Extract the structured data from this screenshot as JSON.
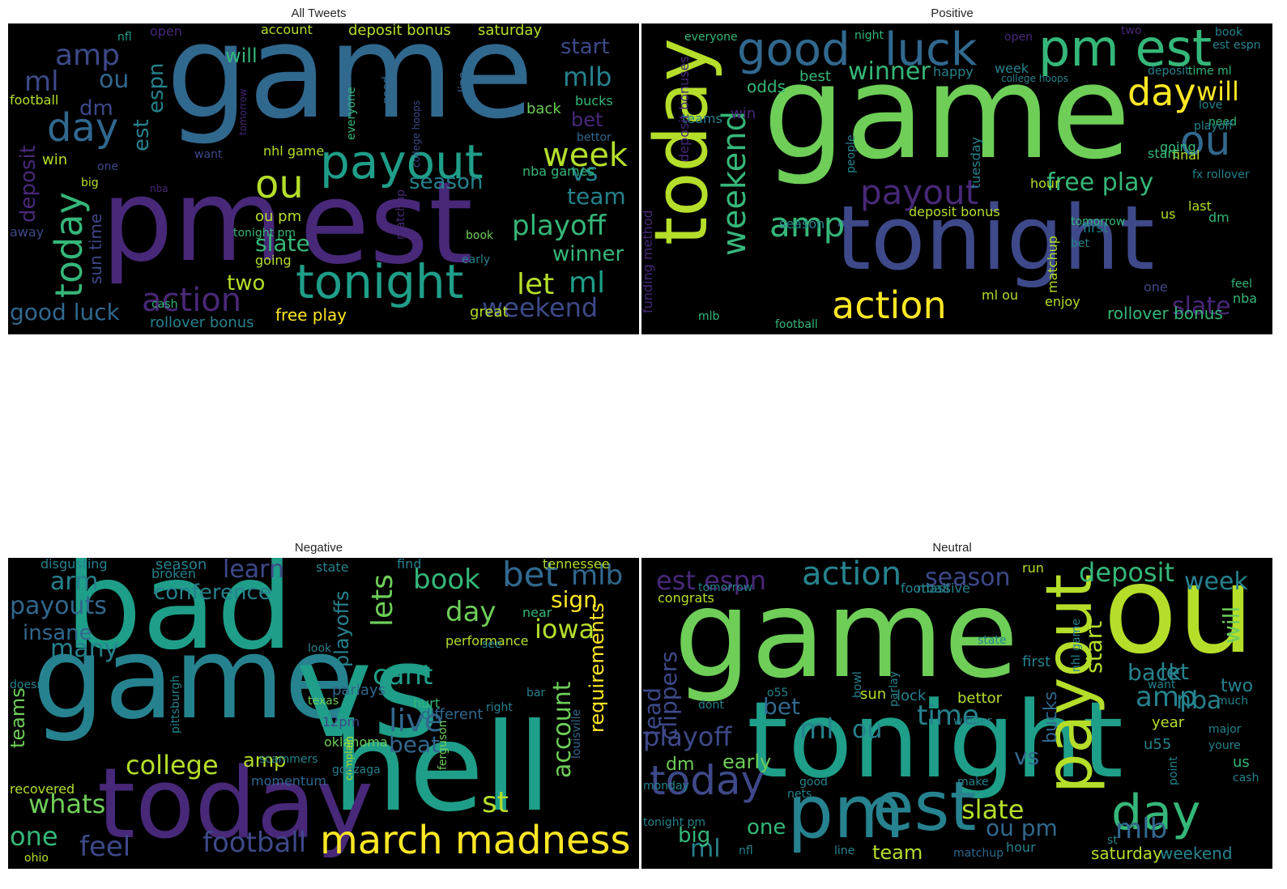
{
  "palette": [
    "#440154",
    "#482878",
    "#3e4989",
    "#31688e",
    "#26828e",
    "#1f9e89",
    "#35b779",
    "#6ece58",
    "#b5de2b",
    "#fde725"
  ],
  "panels": [
    {
      "title": "All Tweets",
      "words": [
        {
          "t": "game",
          "c": "#31688e"
        },
        {
          "t": "pm",
          "c": "#482878"
        },
        {
          "t": "est",
          "c": "#482878"
        },
        {
          "t": "payout",
          "c": "#1f9e89"
        },
        {
          "t": "tonight",
          "c": "#1f9e89"
        },
        {
          "t": "today",
          "c": "#35b779"
        },
        {
          "t": "day",
          "c": "#31688e"
        },
        {
          "t": "amp",
          "c": "#3e4989"
        },
        {
          "t": "ml",
          "c": "#3e4989"
        },
        {
          "t": "ou",
          "c": "#b5de2b"
        },
        {
          "t": "ou",
          "c": "#31688e"
        },
        {
          "t": "action",
          "c": "#482878"
        },
        {
          "t": "week",
          "c": "#b5de2b"
        },
        {
          "t": "playoff",
          "c": "#35b779"
        },
        {
          "t": "let",
          "c": "#b5de2b"
        },
        {
          "t": "ml",
          "c": "#1f9e89"
        },
        {
          "t": "weekend",
          "c": "#3e4989"
        },
        {
          "t": "winner",
          "c": "#35b779"
        },
        {
          "t": "mlb",
          "c": "#26828e"
        },
        {
          "t": "vs",
          "c": "#26828e"
        },
        {
          "t": "team",
          "c": "#26828e"
        },
        {
          "t": "season",
          "c": "#26828e"
        },
        {
          "t": "slate",
          "c": "#35b779"
        },
        {
          "t": "two",
          "c": "#b5de2b"
        },
        {
          "t": "good luck",
          "c": "#31688e"
        },
        {
          "t": "deposit",
          "c": "#482878"
        },
        {
          "t": "espn",
          "c": "#26828e"
        },
        {
          "t": "est",
          "c": "#26828e"
        },
        {
          "t": "dm",
          "c": "#3e4989"
        },
        {
          "t": "will",
          "c": "#35b779"
        },
        {
          "t": "start",
          "c": "#3e4989"
        },
        {
          "t": "bet",
          "c": "#482878"
        },
        {
          "t": "bucks",
          "c": "#35b779"
        },
        {
          "t": "back",
          "c": "#6ece58"
        },
        {
          "t": "free play",
          "c": "#fde725"
        },
        {
          "t": "rollover bonus",
          "c": "#26828e"
        },
        {
          "t": "ou pm",
          "c": "#b5de2b"
        },
        {
          "t": "sun time",
          "c": "#3e4989"
        },
        {
          "t": "deposit bonus",
          "c": "#b5de2b"
        },
        {
          "t": "account",
          "c": "#b5de2b"
        },
        {
          "t": "saturday",
          "c": "#b5de2b"
        },
        {
          "t": "football",
          "c": "#b5de2b"
        },
        {
          "t": "win",
          "c": "#b5de2b"
        },
        {
          "t": "big",
          "c": "#b5de2b"
        },
        {
          "t": "nhl game",
          "c": "#b5de2b"
        },
        {
          "t": "great",
          "c": "#b5de2b"
        },
        {
          "t": "early",
          "c": "#26828e"
        },
        {
          "t": "book",
          "c": "#6ece58"
        },
        {
          "t": "cash",
          "c": "#35b779"
        },
        {
          "t": "going",
          "c": "#b5de2b"
        },
        {
          "t": "matchup",
          "c": "#482878"
        },
        {
          "t": "nba games",
          "c": "#35b779"
        },
        {
          "t": "one",
          "c": "#3e4989"
        },
        {
          "t": "away",
          "c": "#3e4989"
        },
        {
          "t": "nfl",
          "c": "#1f9e89"
        },
        {
          "t": "open",
          "c": "#482878"
        },
        {
          "t": "good",
          "c": "#31688e"
        },
        {
          "t": "everyone",
          "c": "#35b779"
        },
        {
          "t": "line",
          "c": "#31688e"
        },
        {
          "t": "bettor",
          "c": "#31688e"
        },
        {
          "t": "want",
          "c": "#3e4989"
        },
        {
          "t": "nba",
          "c": "#482878"
        },
        {
          "t": "college hoops",
          "c": "#3e4989"
        },
        {
          "t": "tomorrow",
          "c": "#482878"
        },
        {
          "t": "tonight pm",
          "c": "#35b779"
        }
      ]
    },
    {
      "title": "Positive",
      "words": [
        {
          "t": "game",
          "c": "#6ece58"
        },
        {
          "t": "tonight",
          "c": "#3e4989"
        },
        {
          "t": "today",
          "c": "#b5de2b"
        },
        {
          "t": "pm est",
          "c": "#35b779"
        },
        {
          "t": "good",
          "c": "#31688e"
        },
        {
          "t": "luck",
          "c": "#31688e"
        },
        {
          "t": "weekend",
          "c": "#35b779"
        },
        {
          "t": "action",
          "c": "#fde725"
        },
        {
          "t": "payout",
          "c": "#482878"
        },
        {
          "t": "amp",
          "c": "#35b779"
        },
        {
          "t": "day",
          "c": "#fde725"
        },
        {
          "t": "ou",
          "c": "#31688e"
        },
        {
          "t": "winner",
          "c": "#35b779"
        },
        {
          "t": "free play",
          "c": "#35b779"
        },
        {
          "t": "slate",
          "c": "#482878"
        },
        {
          "t": "rollover bonus",
          "c": "#35b779"
        },
        {
          "t": "will",
          "c": "#fde725"
        },
        {
          "t": "odds",
          "c": "#35b779"
        },
        {
          "t": "best",
          "c": "#35b779"
        },
        {
          "t": "win",
          "c": "#482878"
        },
        {
          "t": "teams",
          "c": "#26828e"
        },
        {
          "t": "deposit bonus",
          "c": "#b5de2b"
        },
        {
          "t": "hour",
          "c": "#b5de2b"
        },
        {
          "t": "final",
          "c": "#b5de2b"
        },
        {
          "t": "start",
          "c": "#35b779"
        },
        {
          "t": "going",
          "c": "#35b779"
        },
        {
          "t": "tuesday",
          "c": "#26828e"
        },
        {
          "t": "matchup",
          "c": "#b5de2b"
        },
        {
          "t": "week",
          "c": "#26828e"
        },
        {
          "t": "happy",
          "c": "#26828e"
        },
        {
          "t": "deposit",
          "c": "#26828e"
        },
        {
          "t": "time ml",
          "c": "#35b779"
        },
        {
          "t": "season",
          "c": "#26828e"
        },
        {
          "t": "football",
          "c": "#35b779"
        },
        {
          "t": "enjoy",
          "c": "#b5de2b"
        },
        {
          "t": "ml ou",
          "c": "#b5de2b"
        },
        {
          "t": "nba",
          "c": "#35b779"
        },
        {
          "t": "last",
          "c": "#b5de2b"
        },
        {
          "t": "dm",
          "c": "#35b779"
        },
        {
          "t": "us",
          "c": "#b5de2b"
        },
        {
          "t": "bet",
          "c": "#26828e"
        },
        {
          "t": "first",
          "c": "#26828e"
        },
        {
          "t": "one",
          "c": "#3e4989"
        },
        {
          "t": "feel",
          "c": "#35b779"
        },
        {
          "t": "mlb",
          "c": "#35b779"
        },
        {
          "t": "everyone",
          "c": "#35b779"
        },
        {
          "t": "night",
          "c": "#35b779"
        },
        {
          "t": "open",
          "c": "#482878"
        },
        {
          "t": "book",
          "c": "#26828e"
        },
        {
          "t": "est espn",
          "c": "#26828e"
        },
        {
          "t": "need",
          "c": "#35b779"
        },
        {
          "t": "love",
          "c": "#26828e"
        },
        {
          "t": "people",
          "c": "#26828e"
        },
        {
          "t": "two",
          "c": "#482878"
        },
        {
          "t": "tomorrow",
          "c": "#35b779"
        },
        {
          "t": "college hoops",
          "c": "#26828e"
        },
        {
          "t": "fx rollover",
          "c": "#26828e"
        },
        {
          "t": "playoff",
          "c": "#26828e"
        },
        {
          "t": "funding method",
          "c": "#482878"
        },
        {
          "t": "deposit bonuses",
          "c": "#482878"
        }
      ]
    },
    {
      "title": "Negative",
      "words": [
        {
          "t": "bad",
          "c": "#1f9e89"
        },
        {
          "t": "game",
          "c": "#26828e"
        },
        {
          "t": "vs",
          "c": "#1f9e89"
        },
        {
          "t": "hell",
          "c": "#1f9e89"
        },
        {
          "t": "today",
          "c": "#482878"
        },
        {
          "t": "march madness",
          "c": "#fde725"
        },
        {
          "t": "football",
          "c": "#3e4989"
        },
        {
          "t": "feel",
          "c": "#3e4989"
        },
        {
          "t": "whats",
          "c": "#6ece58"
        },
        {
          "t": "one",
          "c": "#35b779"
        },
        {
          "t": "college",
          "c": "#b5de2b"
        },
        {
          "t": "many",
          "c": "#26828e"
        },
        {
          "t": "insane",
          "c": "#31688e"
        },
        {
          "t": "payouts",
          "c": "#31688e"
        },
        {
          "t": "arm",
          "c": "#26828e"
        },
        {
          "t": "conference",
          "c": "#26828e"
        },
        {
          "t": "learn",
          "c": "#3e4989"
        },
        {
          "t": "bet",
          "c": "#31688e"
        },
        {
          "t": "mlb",
          "c": "#31688e"
        },
        {
          "t": "book",
          "c": "#35b779"
        },
        {
          "t": "lets",
          "c": "#6ece58"
        },
        {
          "t": "day",
          "c": "#6ece58"
        },
        {
          "t": "sign",
          "c": "#fde725"
        },
        {
          "t": "iowa",
          "c": "#b5de2b"
        },
        {
          "t": "cant",
          "c": "#1f9e89"
        },
        {
          "t": "live",
          "c": "#31688e"
        },
        {
          "t": "beat",
          "c": "#31688e"
        },
        {
          "t": "account",
          "c": "#6ece58"
        },
        {
          "t": "requirements",
          "c": "#fde725"
        },
        {
          "t": "playoffs",
          "c": "#26828e"
        },
        {
          "t": "st",
          "c": "#b5de2b"
        },
        {
          "t": "amp",
          "c": "#b5de2b"
        },
        {
          "t": "teams",
          "c": "#6ece58"
        },
        {
          "t": "recovered",
          "c": "#b5de2b"
        },
        {
          "t": "parlays",
          "c": "#31688e"
        },
        {
          "t": "different",
          "c": "#31688e"
        },
        {
          "t": "performance",
          "c": "#b5de2b"
        },
        {
          "t": "season",
          "c": "#26828e"
        },
        {
          "t": "broken",
          "c": "#26828e"
        },
        {
          "t": "disgusting",
          "c": "#26828e"
        },
        {
          "t": "state",
          "c": "#26828e"
        },
        {
          "t": "find",
          "c": "#26828e"
        },
        {
          "t": "tennessee",
          "c": "#b5de2b"
        },
        {
          "t": "near",
          "c": "#35b779"
        },
        {
          "t": "momentum",
          "c": "#31688e"
        },
        {
          "t": "scammers",
          "c": "#26828e"
        },
        {
          "t": "hurt",
          "c": "#35b779"
        },
        {
          "t": "oklahoma",
          "c": "#6ece58"
        },
        {
          "t": "ferguson",
          "c": "#6ece58"
        },
        {
          "t": "louisville",
          "c": "#31688e"
        },
        {
          "t": "pittsburgh",
          "c": "#26828e"
        },
        {
          "t": "complain",
          "c": "#b5de2b"
        },
        {
          "t": "doesnt",
          "c": "#26828e"
        },
        {
          "t": "12pm",
          "c": "#3e4989"
        },
        {
          "t": "see",
          "c": "#26828e"
        },
        {
          "t": "bar",
          "c": "#26828e"
        },
        {
          "t": "right",
          "c": "#26828e"
        },
        {
          "t": "look",
          "c": "#26828e"
        },
        {
          "t": "texas",
          "c": "#6ece58"
        },
        {
          "t": "gonzaga",
          "c": "#26828e"
        },
        {
          "t": "ohio",
          "c": "#b5de2b"
        }
      ]
    },
    {
      "title": "Neutral",
      "words": [
        {
          "t": "game",
          "c": "#6ece58"
        },
        {
          "t": "ou",
          "c": "#b5de2b"
        },
        {
          "t": "tonight",
          "c": "#1f9e89"
        },
        {
          "t": "payout",
          "c": "#b5de2b"
        },
        {
          "t": "pm",
          "c": "#26828e"
        },
        {
          "t": "est",
          "c": "#26828e"
        },
        {
          "t": "today",
          "c": "#3e4989"
        },
        {
          "t": "day",
          "c": "#35b779"
        },
        {
          "t": "action",
          "c": "#26828e"
        },
        {
          "t": "season",
          "c": "#3e4989"
        },
        {
          "t": "est espn",
          "c": "#482878"
        },
        {
          "t": "deposit",
          "c": "#35b779"
        },
        {
          "t": "week",
          "c": "#26828e"
        },
        {
          "t": "will",
          "c": "#6ece58"
        },
        {
          "t": "ml",
          "c": "#26828e"
        },
        {
          "t": "ou",
          "c": "#26828e"
        },
        {
          "t": "time",
          "c": "#26828e"
        },
        {
          "t": "slate",
          "c": "#b5de2b"
        },
        {
          "t": "mlb",
          "c": "#31688e"
        },
        {
          "t": "ml",
          "c": "#26828e"
        },
        {
          "t": "playoff",
          "c": "#3e4989"
        },
        {
          "t": "amp",
          "c": "#26828e"
        },
        {
          "t": "nba",
          "c": "#26828e"
        },
        {
          "t": "back",
          "c": "#26828e"
        },
        {
          "t": "let",
          "c": "#26828e"
        },
        {
          "t": "start",
          "c": "#b5de2b"
        },
        {
          "t": "two",
          "c": "#26828e"
        },
        {
          "t": "bucks",
          "c": "#31688e"
        },
        {
          "t": "vs",
          "c": "#31688e"
        },
        {
          "t": "ou pm",
          "c": "#31688e"
        },
        {
          "t": "bet",
          "c": "#31688e"
        },
        {
          "t": "dm",
          "c": "#6ece58"
        },
        {
          "t": "early",
          "c": "#6ece58"
        },
        {
          "t": "lead",
          "c": "#3e4989"
        },
        {
          "t": "clippers",
          "c": "#3e4989"
        },
        {
          "t": "big",
          "c": "#35b779"
        },
        {
          "t": "one",
          "c": "#35b779"
        },
        {
          "t": "team",
          "c": "#b5de2b"
        },
        {
          "t": "weekend",
          "c": "#26828e"
        },
        {
          "t": "saturday",
          "c": "#b5de2b"
        },
        {
          "t": "bettor",
          "c": "#b5de2b"
        },
        {
          "t": "year",
          "c": "#b5de2b"
        },
        {
          "t": "u55",
          "c": "#26828e"
        },
        {
          "t": "us",
          "c": "#35b779"
        },
        {
          "t": "first",
          "c": "#26828e"
        },
        {
          "t": "sun",
          "c": "#b5de2b"
        },
        {
          "t": "lock",
          "c": "#26828e"
        },
        {
          "t": "football",
          "c": "#26828e"
        },
        {
          "t": "massive",
          "c": "#26828e"
        },
        {
          "t": "matchup",
          "c": "#31688e"
        },
        {
          "t": "line",
          "c": "#26828e"
        },
        {
          "t": "hour",
          "c": "#26828e"
        },
        {
          "t": "st",
          "c": "#26828e"
        },
        {
          "t": "nfl",
          "c": "#26828e"
        },
        {
          "t": "monday",
          "c": "#26828e"
        },
        {
          "t": "tonight pm",
          "c": "#26828e"
        },
        {
          "t": "o55",
          "c": "#26828e"
        },
        {
          "t": "run",
          "c": "#b5de2b"
        },
        {
          "t": "tomorrow",
          "c": "#26828e"
        },
        {
          "t": "congrats",
          "c": "#b5de2b"
        },
        {
          "t": "want",
          "c": "#26828e"
        },
        {
          "t": "much",
          "c": "#26828e"
        },
        {
          "t": "youre",
          "c": "#26828e"
        },
        {
          "t": "major",
          "c": "#26828e"
        },
        {
          "t": "cash",
          "c": "#26828e"
        },
        {
          "t": "point",
          "c": "#26828e"
        },
        {
          "t": "state",
          "c": "#26828e"
        },
        {
          "t": "dont",
          "c": "#26828e"
        },
        {
          "t": "nets",
          "c": "#26828e"
        },
        {
          "t": "good",
          "c": "#26828e"
        },
        {
          "t": "parlay",
          "c": "#26828e"
        },
        {
          "t": "winner",
          "c": "#26828e"
        },
        {
          "t": "bowl",
          "c": "#26828e"
        },
        {
          "t": "make",
          "c": "#26828e"
        },
        {
          "t": "nhl game",
          "c": "#26828e"
        }
      ]
    }
  ]
}
